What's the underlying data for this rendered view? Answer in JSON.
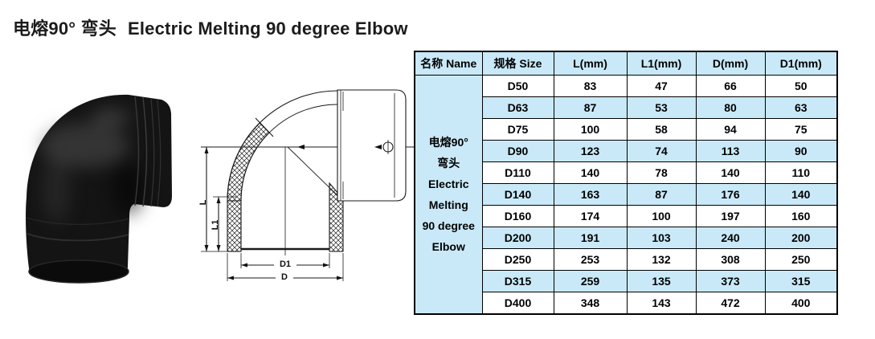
{
  "page": {
    "title_zh": "电熔90° 弯头",
    "title_en": "Electric Melting 90 degree Elbow"
  },
  "diagram": {
    "dim_l": "L",
    "dim_l1": "L1",
    "dim_d1": "D1",
    "dim_d": "D"
  },
  "table": {
    "header": [
      "名称 Name",
      "规格 Size",
      "L(mm)",
      "L1(mm)",
      "D(mm)",
      "D1(mm)"
    ],
    "name_lines": [
      "电熔90°",
      "弯头",
      "Electric",
      "Melting",
      "90 degree",
      "Elbow"
    ],
    "rows": [
      [
        "D50",
        "83",
        "47",
        "66",
        "50"
      ],
      [
        "D63",
        "87",
        "53",
        "80",
        "63"
      ],
      [
        "D75",
        "100",
        "58",
        "94",
        "75"
      ],
      [
        "D90",
        "123",
        "74",
        "113",
        "90"
      ],
      [
        "D110",
        "140",
        "78",
        "140",
        "110"
      ],
      [
        "D140",
        "163",
        "87",
        "176",
        "140"
      ],
      [
        "D160",
        "174",
        "100",
        "197",
        "160"
      ],
      [
        "D200",
        "191",
        "103",
        "240",
        "200"
      ],
      [
        "D250",
        "253",
        "132",
        "308",
        "250"
      ],
      [
        "D315",
        "259",
        "135",
        "373",
        "315"
      ],
      [
        "D400",
        "348",
        "143",
        "472",
        "400"
      ]
    ],
    "colors": {
      "stripe": "#c9e9f8",
      "border": "#000000"
    }
  }
}
